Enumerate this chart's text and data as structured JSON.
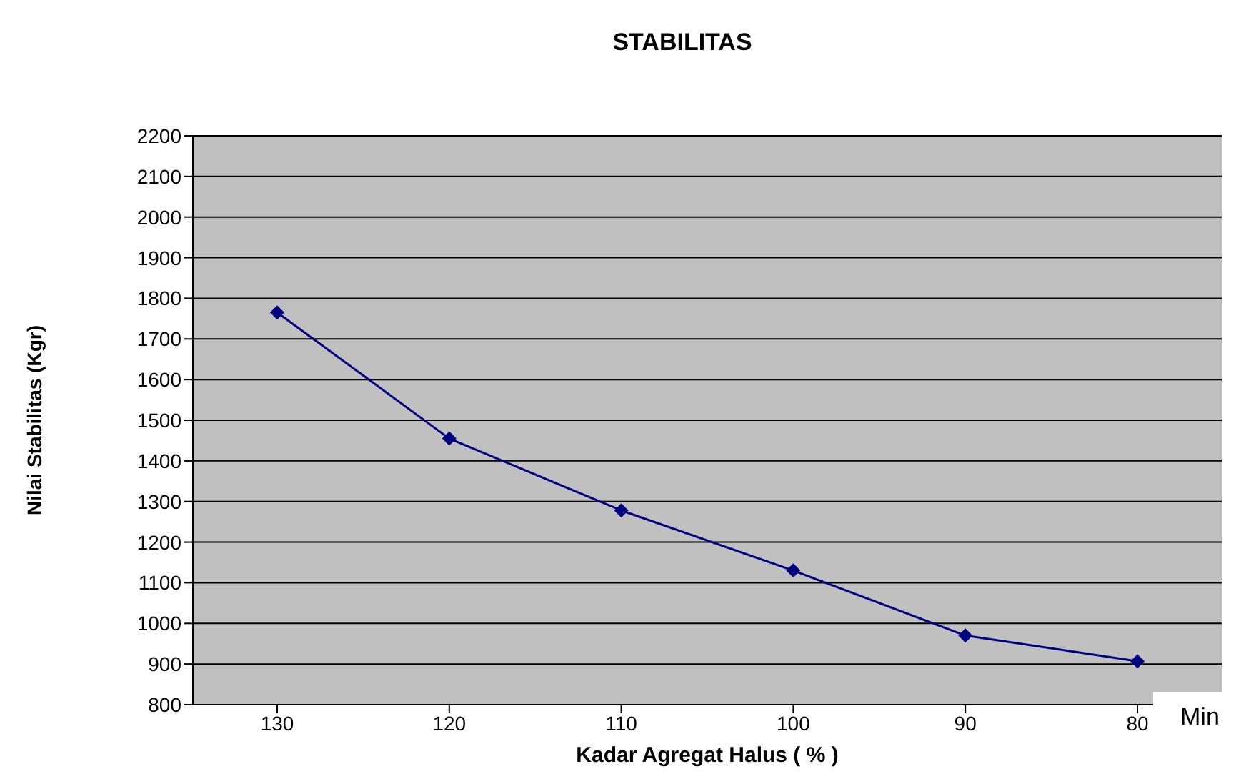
{
  "chart_data": {
    "type": "line",
    "title": "STABILITAS",
    "xlabel": "Kadar Agregat Halus ( % )",
    "ylabel": "Nilai Stabilitas  (Kgr)",
    "categories": [
      "130",
      "120",
      "110",
      "100",
      "90",
      "80"
    ],
    "series": [
      {
        "color": "#000080",
        "values": [
          1765,
          1455,
          1278,
          1130,
          970,
          907
        ]
      }
    ],
    "ylim": [
      800,
      2200
    ],
    "yticks": [
      800,
      900,
      1000,
      1100,
      1200,
      1300,
      1400,
      1500,
      1600,
      1700,
      1800,
      1900,
      2000,
      2100,
      2200
    ],
    "grid": "y",
    "marker": "diamond",
    "annotations": [
      "Min"
    ]
  }
}
